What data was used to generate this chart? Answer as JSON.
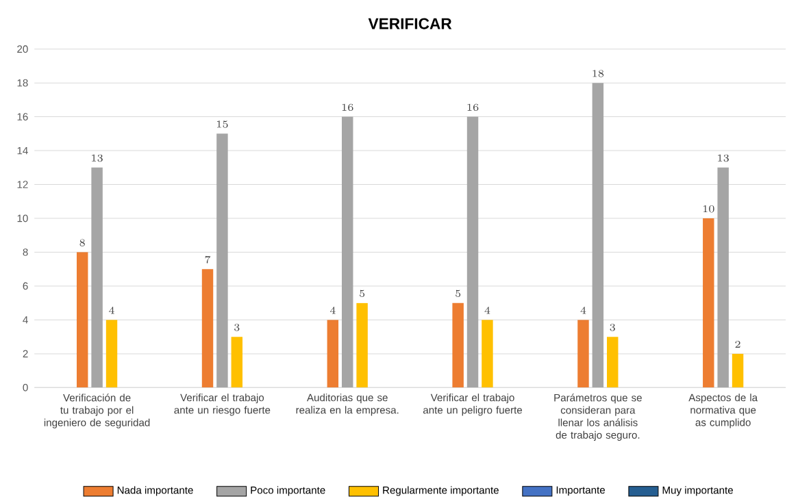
{
  "chart_data": {
    "type": "bar",
    "title": "VERIFICAR",
    "categories": [
      "Verificación de tu trabajo por el ingeniero de seguridad",
      "Verificar el trabajo ante un riesgo fuerte",
      "Auditorias que se realiza en la empresa.",
      "Verificar el trabajo ante un peligro fuerte",
      "Parámetros que se consideran para llenar los análisis de trabajo seguro.",
      "Aspectos de la normativa que as cumplido"
    ],
    "series": [
      {
        "name": "Nada importante",
        "color": "#ed7d31",
        "values": [
          8,
          7,
          4,
          5,
          4,
          10
        ]
      },
      {
        "name": "Poco importante",
        "color": "#a5a5a5",
        "values": [
          13,
          15,
          16,
          16,
          18,
          13
        ]
      },
      {
        "name": "Regularmente importante",
        "color": "#ffc000",
        "values": [
          4,
          3,
          5,
          4,
          3,
          2
        ]
      },
      {
        "name": "Importante",
        "color": "#4472c4",
        "values": [
          null,
          null,
          null,
          null,
          null,
          null
        ]
      },
      {
        "name": "Muy importante",
        "color": "#255e91",
        "values": [
          null,
          null,
          null,
          null,
          null,
          null
        ]
      }
    ],
    "ylim": [
      0,
      20
    ],
    "yticks": [
      0,
      2,
      4,
      6,
      8,
      10,
      12,
      14,
      16,
      18,
      20
    ],
    "grid": "y",
    "legend": "bottom",
    "data_labels": true
  }
}
